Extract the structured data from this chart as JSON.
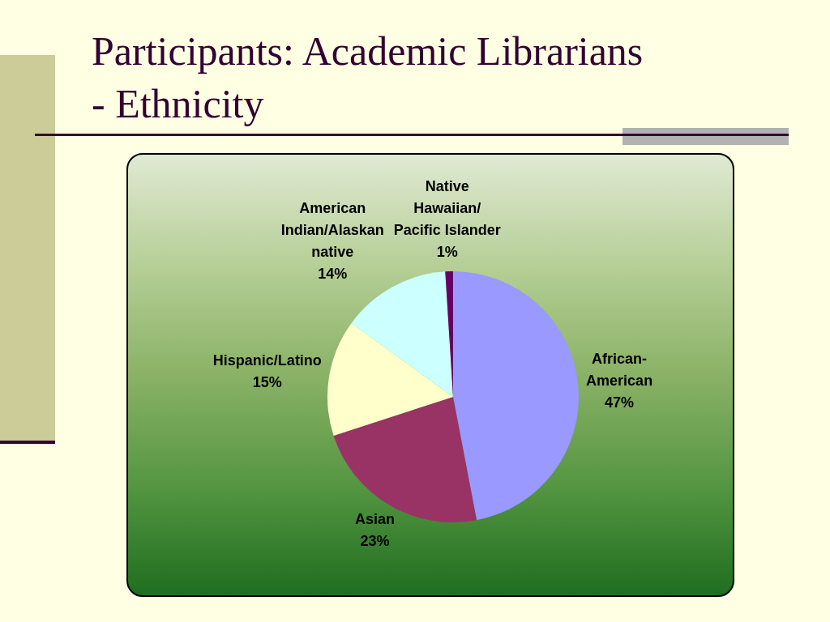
{
  "chart_data": {
    "type": "pie",
    "title": "Participants: Academic Librarians - Ethnicity",
    "categories": [
      "African-American",
      "Asian",
      "Hispanic/Latino",
      "American Indian/Alaskan native",
      "Native Hawaiian/Pacific Islander"
    ],
    "values": [
      47,
      23,
      15,
      14,
      1
    ],
    "colors": [
      "#9999ff",
      "#993366",
      "#ffffcc",
      "#ccffff",
      "#660066"
    ],
    "value_labels": [
      "47%",
      "23%",
      "15%",
      "14%",
      "1%"
    ]
  }
}
